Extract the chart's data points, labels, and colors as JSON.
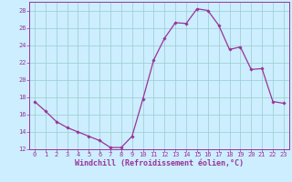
{
  "x": [
    0,
    1,
    2,
    3,
    4,
    5,
    6,
    7,
    8,
    9,
    10,
    11,
    12,
    13,
    14,
    15,
    16,
    17,
    18,
    19,
    20,
    21,
    22,
    23
  ],
  "y": [
    17.5,
    16.4,
    15.2,
    14.5,
    14.0,
    13.5,
    13.0,
    12.2,
    12.2,
    13.5,
    17.8,
    22.3,
    24.8,
    26.6,
    26.5,
    28.2,
    28.0,
    26.3,
    23.5,
    23.8,
    21.2,
    21.3,
    17.5,
    17.3
  ],
  "line_color": "#993399",
  "marker": "D",
  "marker_size": 1.8,
  "bg_color": "#cceeff",
  "grid_color": "#99cccc",
  "xlim": [
    -0.5,
    23.5
  ],
  "ylim": [
    12,
    29
  ],
  "yticks": [
    12,
    14,
    16,
    18,
    20,
    22,
    24,
    26,
    28
  ],
  "xticks": [
    0,
    1,
    2,
    3,
    4,
    5,
    6,
    7,
    8,
    9,
    10,
    11,
    12,
    13,
    14,
    15,
    16,
    17,
    18,
    19,
    20,
    21,
    22,
    23
  ],
  "xlabel": "Windchill (Refroidissement éolien,°C)",
  "xlabel_color": "#993399",
  "tick_color": "#993399",
  "axis_color": "#993399",
  "tick_fontsize": 5.0,
  "xlabel_fontsize": 6.0
}
